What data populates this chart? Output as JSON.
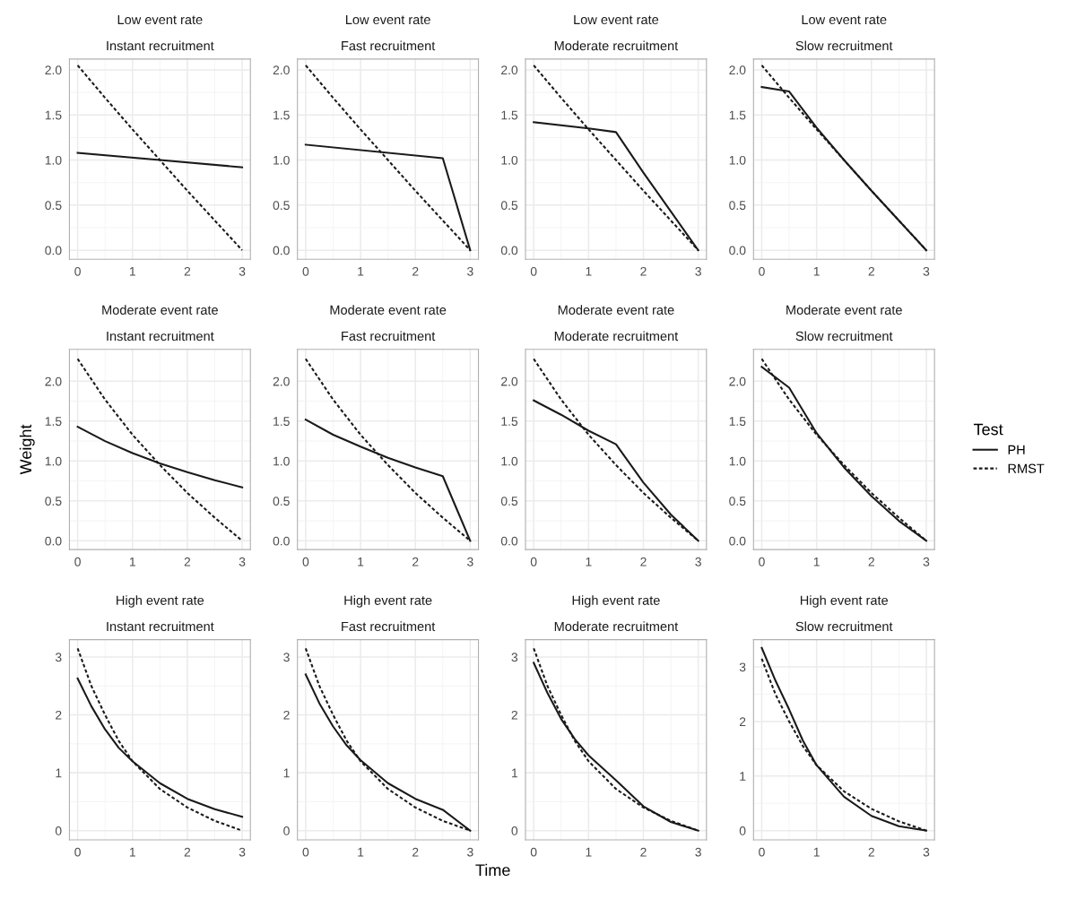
{
  "chart_data": [
    {
      "type": "line",
      "title": "Low event rate",
      "subtitle": "Instant recruitment",
      "xlim": [
        -0.15,
        3.15
      ],
      "xticks": [
        0,
        1,
        2,
        3
      ],
      "ylim": [
        -0.1,
        2.12
      ],
      "yticks": [
        {
          "value": 0,
          "label": "0.0"
        },
        {
          "value": 0.5,
          "label": "0.5"
        },
        {
          "value": 1,
          "label": "1.0"
        },
        {
          "value": 1.5,
          "label": "1.5"
        },
        {
          "value": 2,
          "label": "2.0"
        }
      ],
      "grid": true,
      "series": [
        {
          "color": "#1a1a1a",
          "line_style": "solid",
          "x": [
            0,
            1.5,
            3
          ],
          "values": [
            1.08,
            1.0,
            0.92
          ]
        },
        {
          "color": "#1a1a1a",
          "line_style": "dotted",
          "x": [
            0,
            0.5,
            1,
            1.5,
            2,
            2.5,
            3
          ],
          "values": [
            2.05,
            1.69,
            1.34,
            1.0,
            0.66,
            0.33,
            0
          ]
        }
      ]
    },
    {
      "type": "line",
      "title": "Low event rate",
      "subtitle": "Fast recruitment",
      "xlim": [
        -0.15,
        3.15
      ],
      "xticks": [
        0,
        1,
        2,
        3
      ],
      "ylim": [
        -0.1,
        2.12
      ],
      "yticks": [
        {
          "value": 0,
          "label": "0.0"
        },
        {
          "value": 0.5,
          "label": "0.5"
        },
        {
          "value": 1,
          "label": "1.0"
        },
        {
          "value": 1.5,
          "label": "1.5"
        },
        {
          "value": 2,
          "label": "2.0"
        }
      ],
      "grid": true,
      "series": [
        {
          "color": "#1a1a1a",
          "line_style": "solid",
          "x": [
            0,
            2.5,
            3
          ],
          "values": [
            1.17,
            1.02,
            0
          ]
        },
        {
          "color": "#1a1a1a",
          "line_style": "dotted",
          "x": [
            0,
            0.5,
            1,
            1.5,
            2,
            2.5,
            3
          ],
          "values": [
            2.05,
            1.69,
            1.34,
            1.0,
            0.66,
            0.33,
            0
          ]
        }
      ]
    },
    {
      "type": "line",
      "title": "Low event rate",
      "subtitle": "Moderate recruitment",
      "xlim": [
        -0.15,
        3.15
      ],
      "xticks": [
        0,
        1,
        2,
        3
      ],
      "ylim": [
        -0.1,
        2.12
      ],
      "yticks": [
        {
          "value": 0,
          "label": "0.0"
        },
        {
          "value": 0.5,
          "label": "0.5"
        },
        {
          "value": 1,
          "label": "1.0"
        },
        {
          "value": 1.5,
          "label": "1.5"
        },
        {
          "value": 2,
          "label": "2.0"
        }
      ],
      "grid": true,
      "series": [
        {
          "color": "#1a1a1a",
          "line_style": "solid",
          "x": [
            0,
            1,
            1.5,
            2,
            2.5,
            3
          ],
          "values": [
            1.42,
            1.35,
            1.31,
            0.86,
            0.43,
            0
          ]
        },
        {
          "color": "#1a1a1a",
          "line_style": "dotted",
          "x": [
            0,
            0.5,
            1,
            1.5,
            2,
            2.5,
            3
          ],
          "values": [
            2.05,
            1.69,
            1.34,
            1.0,
            0.66,
            0.33,
            0
          ]
        }
      ]
    },
    {
      "type": "line",
      "title": "Low event rate",
      "subtitle": "Slow recruitment",
      "xlim": [
        -0.15,
        3.15
      ],
      "xticks": [
        0,
        1,
        2,
        3
      ],
      "ylim": [
        -0.1,
        2.12
      ],
      "yticks": [
        {
          "value": 0,
          "label": "0.0"
        },
        {
          "value": 0.5,
          "label": "0.5"
        },
        {
          "value": 1,
          "label": "1.0"
        },
        {
          "value": 1.5,
          "label": "1.5"
        },
        {
          "value": 2,
          "label": "2.0"
        }
      ],
      "grid": true,
      "series": [
        {
          "color": "#1a1a1a",
          "line_style": "solid",
          "x": [
            0,
            0.5,
            1,
            1.5,
            2,
            2.5,
            3
          ],
          "values": [
            1.81,
            1.76,
            1.36,
            1.0,
            0.66,
            0.33,
            0
          ]
        },
        {
          "color": "#1a1a1a",
          "line_style": "dotted",
          "x": [
            0,
            0.5,
            1,
            1.5,
            2,
            2.5,
            3
          ],
          "values": [
            2.05,
            1.69,
            1.34,
            1.0,
            0.66,
            0.33,
            0
          ]
        }
      ]
    },
    {
      "type": "line",
      "title": "Moderate event rate",
      "subtitle": "Instant recruitment",
      "ylabel": "Weight",
      "xlim": [
        -0.15,
        3.15
      ],
      "xticks": [
        0,
        1,
        2,
        3
      ],
      "ylim": [
        -0.11,
        2.4
      ],
      "yticks": [
        {
          "value": 0,
          "label": "0.0"
        },
        {
          "value": 0.5,
          "label": "0.5"
        },
        {
          "value": 1,
          "label": "1.0"
        },
        {
          "value": 1.5,
          "label": "1.5"
        },
        {
          "value": 2,
          "label": "2.0"
        }
      ],
      "grid": true,
      "series": [
        {
          "color": "#1a1a1a",
          "line_style": "solid",
          "x": [
            0,
            0.5,
            1,
            1.5,
            2,
            2.5,
            3
          ],
          "values": [
            1.43,
            1.25,
            1.1,
            0.97,
            0.86,
            0.76,
            0.67
          ]
        },
        {
          "color": "#1a1a1a",
          "line_style": "dotted",
          "x": [
            0,
            0.5,
            1,
            1.5,
            2,
            2.5,
            3
          ],
          "values": [
            2.28,
            1.77,
            1.33,
            0.95,
            0.6,
            0.29,
            0
          ]
        }
      ]
    },
    {
      "type": "line",
      "title": "Moderate event rate",
      "subtitle": "Fast recruitment",
      "xlim": [
        -0.15,
        3.15
      ],
      "xticks": [
        0,
        1,
        2,
        3
      ],
      "ylim": [
        -0.11,
        2.4
      ],
      "yticks": [
        {
          "value": 0,
          "label": "0.0"
        },
        {
          "value": 0.5,
          "label": "0.5"
        },
        {
          "value": 1,
          "label": "1.0"
        },
        {
          "value": 1.5,
          "label": "1.5"
        },
        {
          "value": 2,
          "label": "2.0"
        }
      ],
      "grid": true,
      "series": [
        {
          "color": "#1a1a1a",
          "line_style": "solid",
          "x": [
            0,
            0.5,
            1,
            1.5,
            2,
            2.5,
            3
          ],
          "values": [
            1.52,
            1.33,
            1.18,
            1.04,
            0.92,
            0.81,
            0
          ]
        },
        {
          "color": "#1a1a1a",
          "line_style": "dotted",
          "x": [
            0,
            0.5,
            1,
            1.5,
            2,
            2.5,
            3
          ],
          "values": [
            2.28,
            1.77,
            1.33,
            0.95,
            0.6,
            0.29,
            0
          ]
        }
      ]
    },
    {
      "type": "line",
      "title": "Moderate event rate",
      "subtitle": "Moderate recruitment",
      "xlim": [
        -0.15,
        3.15
      ],
      "xticks": [
        0,
        1,
        2,
        3
      ],
      "ylim": [
        -0.11,
        2.4
      ],
      "yticks": [
        {
          "value": 0,
          "label": "0.0"
        },
        {
          "value": 0.5,
          "label": "0.5"
        },
        {
          "value": 1,
          "label": "1.0"
        },
        {
          "value": 1.5,
          "label": "1.5"
        },
        {
          "value": 2,
          "label": "2.0"
        }
      ],
      "grid": true,
      "series": [
        {
          "color": "#1a1a1a",
          "line_style": "solid",
          "x": [
            0,
            0.5,
            1,
            1.5,
            2,
            2.5,
            3
          ],
          "values": [
            1.76,
            1.58,
            1.38,
            1.21,
            0.73,
            0.33,
            0
          ]
        },
        {
          "color": "#1a1a1a",
          "line_style": "dotted",
          "x": [
            0,
            0.5,
            1,
            1.5,
            2,
            2.5,
            3
          ],
          "values": [
            2.28,
            1.77,
            1.33,
            0.95,
            0.6,
            0.29,
            0
          ]
        }
      ]
    },
    {
      "type": "line",
      "title": "Moderate event rate",
      "subtitle": "Slow recruitment",
      "legend_title": "Test",
      "legend": "right",
      "xlim": [
        -0.15,
        3.15
      ],
      "xticks": [
        0,
        1,
        2,
        3
      ],
      "ylim": [
        -0.11,
        2.4
      ],
      "yticks": [
        {
          "value": 0,
          "label": "0.0"
        },
        {
          "value": 0.5,
          "label": "0.5"
        },
        {
          "value": 1,
          "label": "1.0"
        },
        {
          "value": 1.5,
          "label": "1.5"
        },
        {
          "value": 2,
          "label": "2.0"
        }
      ],
      "grid": true,
      "series": [
        {
          "name": "PH",
          "color": "#1a1a1a",
          "line_style": "solid",
          "x": [
            0,
            0.5,
            1,
            1.5,
            2,
            2.5,
            3
          ],
          "values": [
            2.18,
            1.92,
            1.35,
            0.92,
            0.56,
            0.25,
            0
          ]
        },
        {
          "name": "RMST",
          "color": "#1a1a1a",
          "line_style": "dotted",
          "x": [
            0,
            0.5,
            1,
            1.5,
            2,
            2.5,
            3
          ],
          "values": [
            2.28,
            1.77,
            1.33,
            0.95,
            0.6,
            0.29,
            0
          ]
        }
      ]
    },
    {
      "type": "line",
      "title": "High event rate",
      "subtitle": "Instant recruitment",
      "xlim": [
        -0.15,
        3.15
      ],
      "xticks": [
        0,
        1,
        2,
        3
      ],
      "ylim": [
        -0.16,
        3.3
      ],
      "yticks": [
        0,
        1,
        2,
        3
      ],
      "grid": true,
      "series": [
        {
          "color": "#1a1a1a",
          "line_style": "solid",
          "x": [
            0,
            0.25,
            0.5,
            0.75,
            1,
            1.5,
            2,
            2.5,
            3
          ],
          "values": [
            2.63,
            2.15,
            1.75,
            1.43,
            1.2,
            0.82,
            0.55,
            0.37,
            0.24
          ]
        },
        {
          "color": "#1a1a1a",
          "line_style": "dotted",
          "x": [
            0,
            0.25,
            0.5,
            0.75,
            1,
            1.5,
            2,
            2.5,
            3
          ],
          "values": [
            3.15,
            2.5,
            2.0,
            1.55,
            1.2,
            0.72,
            0.4,
            0.17,
            0
          ]
        }
      ]
    },
    {
      "type": "line",
      "title": "High event rate",
      "subtitle": "Fast recruitment",
      "xlabel": "Time",
      "xlim": [
        -0.15,
        3.15
      ],
      "xticks": [
        0,
        1,
        2,
        3
      ],
      "ylim": [
        -0.16,
        3.3
      ],
      "yticks": [
        0,
        1,
        2,
        3
      ],
      "grid": true,
      "series": [
        {
          "color": "#1a1a1a",
          "line_style": "solid",
          "x": [
            0,
            0.25,
            0.5,
            0.75,
            1,
            1.5,
            2,
            2.5,
            3
          ],
          "values": [
            2.7,
            2.2,
            1.8,
            1.47,
            1.22,
            0.82,
            0.55,
            0.36,
            0
          ]
        },
        {
          "color": "#1a1a1a",
          "line_style": "dotted",
          "x": [
            0,
            0.25,
            0.5,
            0.75,
            1,
            1.5,
            2,
            2.5,
            3
          ],
          "values": [
            3.15,
            2.5,
            2.0,
            1.55,
            1.2,
            0.72,
            0.4,
            0.17,
            0
          ]
        }
      ]
    },
    {
      "type": "line",
      "title": "High event rate",
      "subtitle": "Moderate recruitment",
      "xlim": [
        -0.15,
        3.15
      ],
      "xticks": [
        0,
        1,
        2,
        3
      ],
      "ylim": [
        -0.16,
        3.3
      ],
      "yticks": [
        0,
        1,
        2,
        3
      ],
      "grid": true,
      "series": [
        {
          "color": "#1a1a1a",
          "line_style": "solid",
          "x": [
            0,
            0.25,
            0.5,
            0.75,
            1,
            1.5,
            2,
            2.5,
            3
          ],
          "values": [
            2.9,
            2.38,
            1.93,
            1.58,
            1.3,
            0.87,
            0.42,
            0.15,
            0
          ]
        },
        {
          "color": "#1a1a1a",
          "line_style": "dotted",
          "x": [
            0,
            0.25,
            0.5,
            0.75,
            1,
            1.5,
            2,
            2.5,
            3
          ],
          "values": [
            3.15,
            2.5,
            2.0,
            1.55,
            1.2,
            0.72,
            0.4,
            0.17,
            0
          ]
        }
      ]
    },
    {
      "type": "line",
      "title": "High event rate",
      "subtitle": "Slow recruitment",
      "xlim": [
        -0.15,
        3.15
      ],
      "xticks": [
        0,
        1,
        2,
        3
      ],
      "ylim": [
        -0.17,
        3.5
      ],
      "yticks": [
        0,
        1,
        2,
        3
      ],
      "grid": true,
      "series": [
        {
          "color": "#1a1a1a",
          "line_style": "solid",
          "x": [
            0,
            0.25,
            0.5,
            0.75,
            1,
            1.5,
            2,
            2.5,
            3
          ],
          "values": [
            3.35,
            2.75,
            2.22,
            1.65,
            1.2,
            0.62,
            0.27,
            0.08,
            0
          ]
        },
        {
          "color": "#1a1a1a",
          "line_style": "dotted",
          "x": [
            0,
            0.25,
            0.5,
            0.75,
            1,
            1.5,
            2,
            2.5,
            3
          ],
          "values": [
            3.15,
            2.5,
            2.0,
            1.55,
            1.2,
            0.72,
            0.4,
            0.17,
            0
          ]
        }
      ]
    }
  ]
}
